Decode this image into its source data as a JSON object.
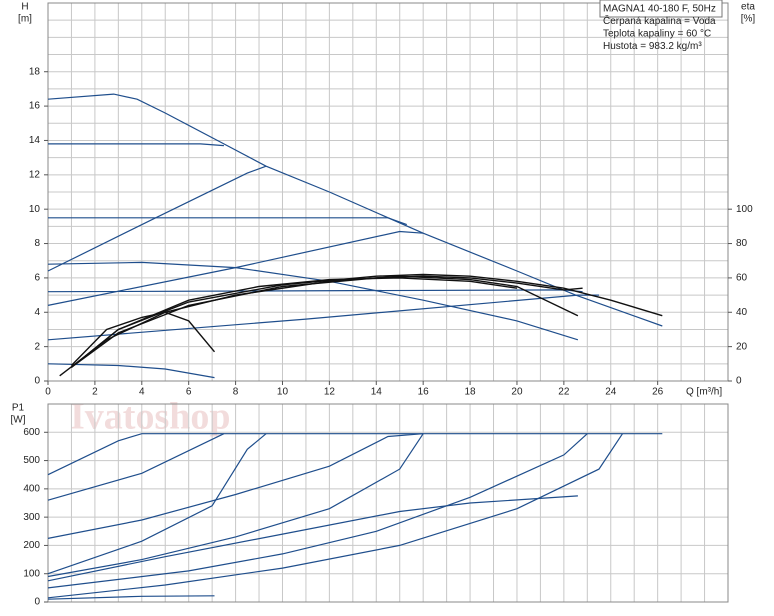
{
  "chart_data": [
    {
      "type": "line",
      "y_label": "H",
      "y_unit": "[m]",
      "y2_label": "eta",
      "y2_unit": "[%]",
      "x_label": "Q [m³/h]",
      "info": [
        "MAGNA1 40-180 F, 50Hz",
        "Čerpaná kapalina = Voda",
        "Teplota kapaliny = 60 °C",
        "Hustota = 983.2 kg/m³"
      ],
      "xlim": [
        0,
        29
      ],
      "xticks": [
        0,
        2,
        4,
        6,
        8,
        10,
        12,
        14,
        16,
        18,
        20,
        22,
        24,
        26
      ],
      "ylim": [
        0,
        22
      ],
      "yticks": [
        0,
        2,
        4,
        6,
        8,
        10,
        12,
        14,
        16,
        18
      ],
      "y2lim": [
        0,
        220
      ],
      "y2ticks": [
        0,
        20,
        40,
        60,
        80,
        100
      ],
      "x_grid_step": 1,
      "y_grid_step": 1,
      "grid": true,
      "series": [
        {
          "color": "#1f4e8c",
          "x": [
            0,
            2.8,
            3.8,
            5,
            7.5,
            9.3,
            12,
            16,
            20,
            22.5,
            26.2
          ],
          "values": [
            16.4,
            16.7,
            16.4,
            15.6,
            13.8,
            12.5,
            11,
            8.6,
            6.4,
            5.0,
            3.2
          ]
        },
        {
          "color": "#1f4e8c",
          "x": [
            0,
            6.5,
            7.5
          ],
          "values": [
            13.8,
            13.8,
            13.7
          ]
        },
        {
          "color": "#1f4e8c",
          "x": [
            0,
            4.3,
            8.5,
            9.3
          ],
          "values": [
            6.4,
            9.3,
            12.1,
            12.5
          ]
        },
        {
          "color": "#1f4e8c",
          "x": [
            0,
            14.5,
            15.3
          ],
          "values": [
            9.5,
            9.5,
            9.1
          ]
        },
        {
          "color": "#1f4e8c",
          "x": [
            0,
            8,
            15,
            16
          ],
          "values": [
            4.4,
            6.6,
            8.7,
            8.6
          ]
        },
        {
          "color": "#1f4e8c",
          "x": [
            0,
            4,
            8,
            12,
            16,
            20,
            22.6
          ],
          "values": [
            6.8,
            6.9,
            6.6,
            5.8,
            4.7,
            3.5,
            2.4
          ]
        },
        {
          "color": "#1f4e8c",
          "x": [
            0,
            22,
            22.8
          ],
          "values": [
            5.2,
            5.3,
            5.2
          ]
        },
        {
          "color": "#1f4e8c",
          "x": [
            0,
            11,
            22.6,
            23.5
          ],
          "values": [
            2.4,
            3.6,
            5.0,
            5.0
          ]
        },
        {
          "color": "#1f4e8c",
          "x": [
            0,
            3,
            5,
            7.1
          ],
          "values": [
            1.0,
            0.9,
            0.7,
            0.2
          ]
        },
        {
          "color": "#111111",
          "axis": "y2",
          "x": [
            1,
            3,
            6,
            10,
            14,
            16,
            18,
            20,
            22,
            24,
            26.2
          ],
          "values": [
            8,
            30,
            46,
            56,
            61,
            62,
            61,
            58,
            54,
            47,
            38
          ]
        },
        {
          "color": "#111111",
          "axis": "y2",
          "x": [
            1,
            3,
            6,
            10,
            14,
            16,
            18,
            20,
            22,
            22.8
          ],
          "values": [
            8,
            28,
            44,
            55,
            60,
            61,
            60,
            57,
            53,
            54
          ]
        },
        {
          "color": "#111111",
          "axis": "y2",
          "x": [
            0.5,
            2.5,
            5,
            8,
            12,
            15,
            18,
            20,
            22.6
          ],
          "values": [
            3,
            24,
            40,
            50,
            58,
            61,
            59,
            55,
            38
          ]
        },
        {
          "color": "#111111",
          "axis": "y2",
          "x": [
            1,
            3,
            6,
            9,
            12,
            15,
            18,
            20
          ],
          "values": [
            8,
            30,
            47,
            55,
            59,
            60,
            58,
            54
          ]
        },
        {
          "color": "#111111",
          "axis": "y2",
          "x": [
            1,
            2.5,
            4,
            5,
            6,
            7.1
          ],
          "values": [
            9,
            30,
            37,
            40,
            35,
            17
          ]
        }
      ]
    },
    {
      "type": "line",
      "y_label": "P1",
      "y_unit": "[W]",
      "watermark": "Ivatoshop",
      "xlim": [
        0,
        29
      ],
      "ylim": [
        0,
        700
      ],
      "yticks": [
        0,
        100,
        200,
        300,
        400,
        500,
        600
      ],
      "x_grid_step": 1,
      "y_grid_step": 100,
      "grid": true,
      "series": [
        {
          "color": "#1f4e8c",
          "x": [
            0,
            3,
            4,
            26.2
          ],
          "values": [
            450,
            570,
            595,
            595
          ]
        },
        {
          "color": "#1f4e8c",
          "x": [
            0,
            4,
            7.5
          ],
          "values": [
            360,
            455,
            595
          ]
        },
        {
          "color": "#1f4e8c",
          "x": [
            0,
            4,
            8,
            12,
            14.5,
            16
          ],
          "values": [
            225,
            290,
            380,
            480,
            585,
            595
          ]
        },
        {
          "color": "#1f4e8c",
          "x": [
            0,
            4,
            7,
            8.5,
            9.3
          ],
          "values": [
            100,
            215,
            340,
            540,
            595
          ]
        },
        {
          "color": "#1f4e8c",
          "x": [
            0,
            4,
            8,
            12,
            15,
            16
          ],
          "values": [
            90,
            150,
            230,
            330,
            470,
            595
          ]
        },
        {
          "color": "#1f4e8c",
          "x": [
            0,
            6,
            10,
            14,
            18,
            22,
            23
          ],
          "values": [
            50,
            110,
            170,
            250,
            370,
            520,
            595
          ]
        },
        {
          "color": "#1f4e8c",
          "x": [
            0,
            5,
            10,
            15,
            18,
            22.6
          ],
          "values": [
            75,
            160,
            240,
            320,
            350,
            375
          ]
        },
        {
          "color": "#1f4e8c",
          "x": [
            0,
            5,
            10,
            15,
            20,
            23.5,
            24.5
          ],
          "values": [
            15,
            60,
            120,
            200,
            330,
            470,
            595
          ]
        },
        {
          "color": "#1f4e8c",
          "x": [
            0,
            4,
            7.1
          ],
          "values": [
            10,
            20,
            22
          ]
        }
      ]
    }
  ]
}
